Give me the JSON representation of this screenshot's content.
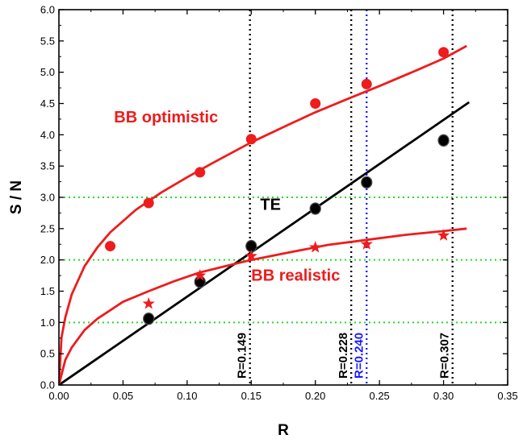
{
  "chart_data": {
    "type": "scatter",
    "title": "",
    "xlabel": "R",
    "ylabel": "S / N",
    "xlim": [
      0.0,
      0.35
    ],
    "ylim": [
      0.0,
      6.0
    ],
    "x_ticks": [
      "0.00",
      "0.05",
      "0.10",
      "0.15",
      "0.20",
      "0.25",
      "0.30",
      "0.35"
    ],
    "y_ticks": [
      "0.0",
      "0.5",
      "1.0",
      "1.5",
      "2.0",
      "2.5",
      "3.0",
      "3.5",
      "4.0",
      "4.5",
      "5.0",
      "5.5",
      "6.0"
    ],
    "grid": false,
    "colors": {
      "red": "#ee1c1c",
      "black": "#000000",
      "blue": "#1a1aff",
      "green": "#22dd22"
    },
    "series": [
      {
        "name": "BB optimistic",
        "marker": "circle",
        "color": "#ee1c1c",
        "points": [
          [
            0.04,
            2.22
          ],
          [
            0.07,
            2.91
          ],
          [
            0.11,
            3.4
          ],
          [
            0.15,
            3.93
          ],
          [
            0.2,
            4.5
          ],
          [
            0.24,
            4.81
          ],
          [
            0.3,
            5.32
          ]
        ],
        "fit": [
          [
            0.0,
            0.0
          ],
          [
            0.002,
            0.76
          ],
          [
            0.005,
            1.08
          ],
          [
            0.01,
            1.45
          ],
          [
            0.02,
            1.9
          ],
          [
            0.03,
            2.2
          ],
          [
            0.04,
            2.44
          ],
          [
            0.06,
            2.8
          ],
          [
            0.08,
            3.08
          ],
          [
            0.1,
            3.32
          ],
          [
            0.12,
            3.55
          ],
          [
            0.15,
            3.88
          ],
          [
            0.18,
            4.17
          ],
          [
            0.2,
            4.36
          ],
          [
            0.22,
            4.53
          ],
          [
            0.25,
            4.78
          ],
          [
            0.28,
            5.04
          ],
          [
            0.3,
            5.22
          ],
          [
            0.318,
            5.42
          ]
        ]
      },
      {
        "name": "TE",
        "marker": "circle-outline",
        "color": "#000000",
        "points": [
          [
            0.07,
            1.06
          ],
          [
            0.11,
            1.65
          ],
          [
            0.15,
            2.22
          ],
          [
            0.2,
            2.82
          ],
          [
            0.24,
            3.24
          ],
          [
            0.3,
            3.91
          ]
        ],
        "fit": [
          [
            0.0,
            0.0
          ],
          [
            0.32,
            4.52
          ]
        ]
      },
      {
        "name": "BB realistic",
        "marker": "star",
        "color": "#ee1c1c",
        "points": [
          [
            0.07,
            1.3
          ],
          [
            0.11,
            1.75
          ],
          [
            0.15,
            2.06
          ],
          [
            0.2,
            2.2
          ],
          [
            0.24,
            2.25
          ],
          [
            0.3,
            2.39
          ]
        ],
        "fit": [
          [
            0.0,
            0.0
          ],
          [
            0.005,
            0.4
          ],
          [
            0.01,
            0.6
          ],
          [
            0.02,
            0.88
          ],
          [
            0.03,
            1.06
          ],
          [
            0.05,
            1.33
          ],
          [
            0.07,
            1.5
          ],
          [
            0.09,
            1.66
          ],
          [
            0.11,
            1.8
          ],
          [
            0.13,
            1.9
          ],
          [
            0.15,
            2.0
          ],
          [
            0.18,
            2.12
          ],
          [
            0.21,
            2.24
          ],
          [
            0.24,
            2.32
          ],
          [
            0.27,
            2.4
          ],
          [
            0.3,
            2.46
          ],
          [
            0.318,
            2.5
          ]
        ]
      }
    ],
    "hlines": [
      {
        "y": 1.0,
        "color": "#22dd22",
        "style": "dotted"
      },
      {
        "y": 2.0,
        "color": "#22dd22",
        "style": "dotted"
      },
      {
        "y": 3.0,
        "color": "#22dd22",
        "style": "dotted"
      }
    ],
    "vlines": [
      {
        "x": 0.149,
        "label": "R=0.149",
        "color": "#000000",
        "style": "dotted"
      },
      {
        "x": 0.228,
        "label": "R=0.228",
        "color": "#000000",
        "style": "dotted"
      },
      {
        "x": 0.24,
        "label": "R=0.240",
        "color": "#1a1aff",
        "style": "dotted"
      },
      {
        "x": 0.307,
        "label": "R=0.307",
        "color": "#000000",
        "style": "dotted"
      }
    ],
    "annotations": [
      {
        "text": "BB optimistic",
        "x": 0.043,
        "y": 4.2,
        "color": "#ee1c1c"
      },
      {
        "text": "TE",
        "x": 0.157,
        "y": 2.8,
        "color": "#000000"
      },
      {
        "text": "BB realistic",
        "x": 0.15,
        "y": 1.67,
        "color": "#ee1c1c"
      }
    ]
  }
}
